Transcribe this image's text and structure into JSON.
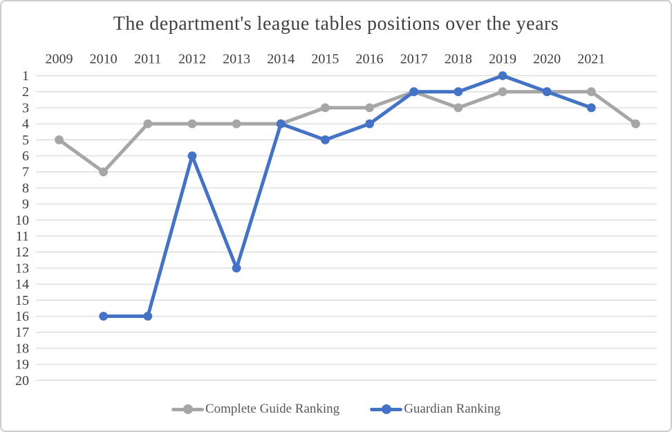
{
  "chart_data": {
    "type": "line",
    "title": "The department's league tables positions over the years",
    "categories": [
      "2009",
      "2010",
      "2011",
      "2012",
      "2013",
      "2014",
      "2015",
      "2016",
      "2017",
      "2018",
      "2019",
      "2020",
      "2021",
      ""
    ],
    "series": [
      {
        "name": "Complete Guide Ranking",
        "color": "#A6A6A6",
        "values": [
          5,
          7,
          4,
          4,
          4,
          4,
          3,
          3,
          2,
          3,
          2,
          2,
          2,
          4
        ]
      },
      {
        "name": "Guardian Ranking",
        "color": "#4472C4",
        "values": [
          null,
          16,
          16,
          6,
          13,
          4,
          5,
          4,
          2,
          2,
          1,
          2,
          3,
          null
        ]
      }
    ],
    "y_axis": {
      "min": 1,
      "max": 20,
      "step": 1,
      "inverted": true
    },
    "x_axis_position": "top",
    "grid": true,
    "legend_position": "bottom",
    "marker": "circle"
  },
  "colors": {
    "grid_line": "#D9D9D9",
    "axis_text": "#404040",
    "legend_text": "#595959",
    "title_text": "#404040",
    "background": "#FFFFFF",
    "frame_border": "#CCCCCC"
  }
}
